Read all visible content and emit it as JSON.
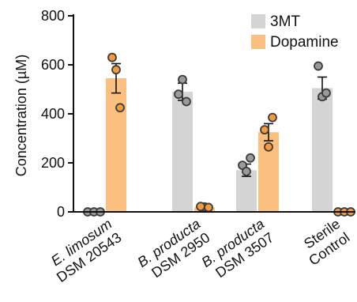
{
  "chart_data": {
    "type": "bar",
    "ylabel": "Concentration (µM)",
    "ylim": [
      0,
      800
    ],
    "yticks": [
      0,
      200,
      400,
      600,
      800
    ],
    "categories": [
      {
        "lines": [
          "E. limosum",
          "DSM 20543"
        ],
        "italic": [
          true,
          false
        ]
      },
      {
        "lines": [
          "B. producta",
          "DSM 2950"
        ],
        "italic": [
          true,
          false
        ]
      },
      {
        "lines": [
          "B. producta",
          "DSM 3507"
        ],
        "italic": [
          true,
          false
        ]
      },
      {
        "lines": [
          "Sterile",
          "Control"
        ],
        "italic": [
          false,
          false
        ]
      }
    ],
    "legend_position": "top-right",
    "series": [
      {
        "name": "3MT",
        "color": "#d4d4d4",
        "values": [
          0,
          490,
          170,
          505
        ],
        "error": [
          0,
          35,
          25,
          45
        ],
        "points": [
          [
            0,
            0,
            0
          ],
          [
            540,
            450,
            480
          ],
          [
            220,
            190,
            165
          ],
          [
            595,
            470,
            485
          ]
        ]
      },
      {
        "name": "Dopamine",
        "color": "#fbbf80",
        "values": [
          545,
          18,
          325,
          0
        ],
        "error": [
          60,
          3,
          35,
          0
        ],
        "points": [
          [
            630,
            580,
            425
          ],
          [
            20,
            18,
            22
          ],
          [
            385,
            335,
            265
          ],
          [
            0,
            0,
            0
          ]
        ]
      }
    ],
    "point_edge_color": "#3b3b3b",
    "gray_point_fill": "#9a9a9a",
    "orange_point_fill": "#f39a3c"
  }
}
